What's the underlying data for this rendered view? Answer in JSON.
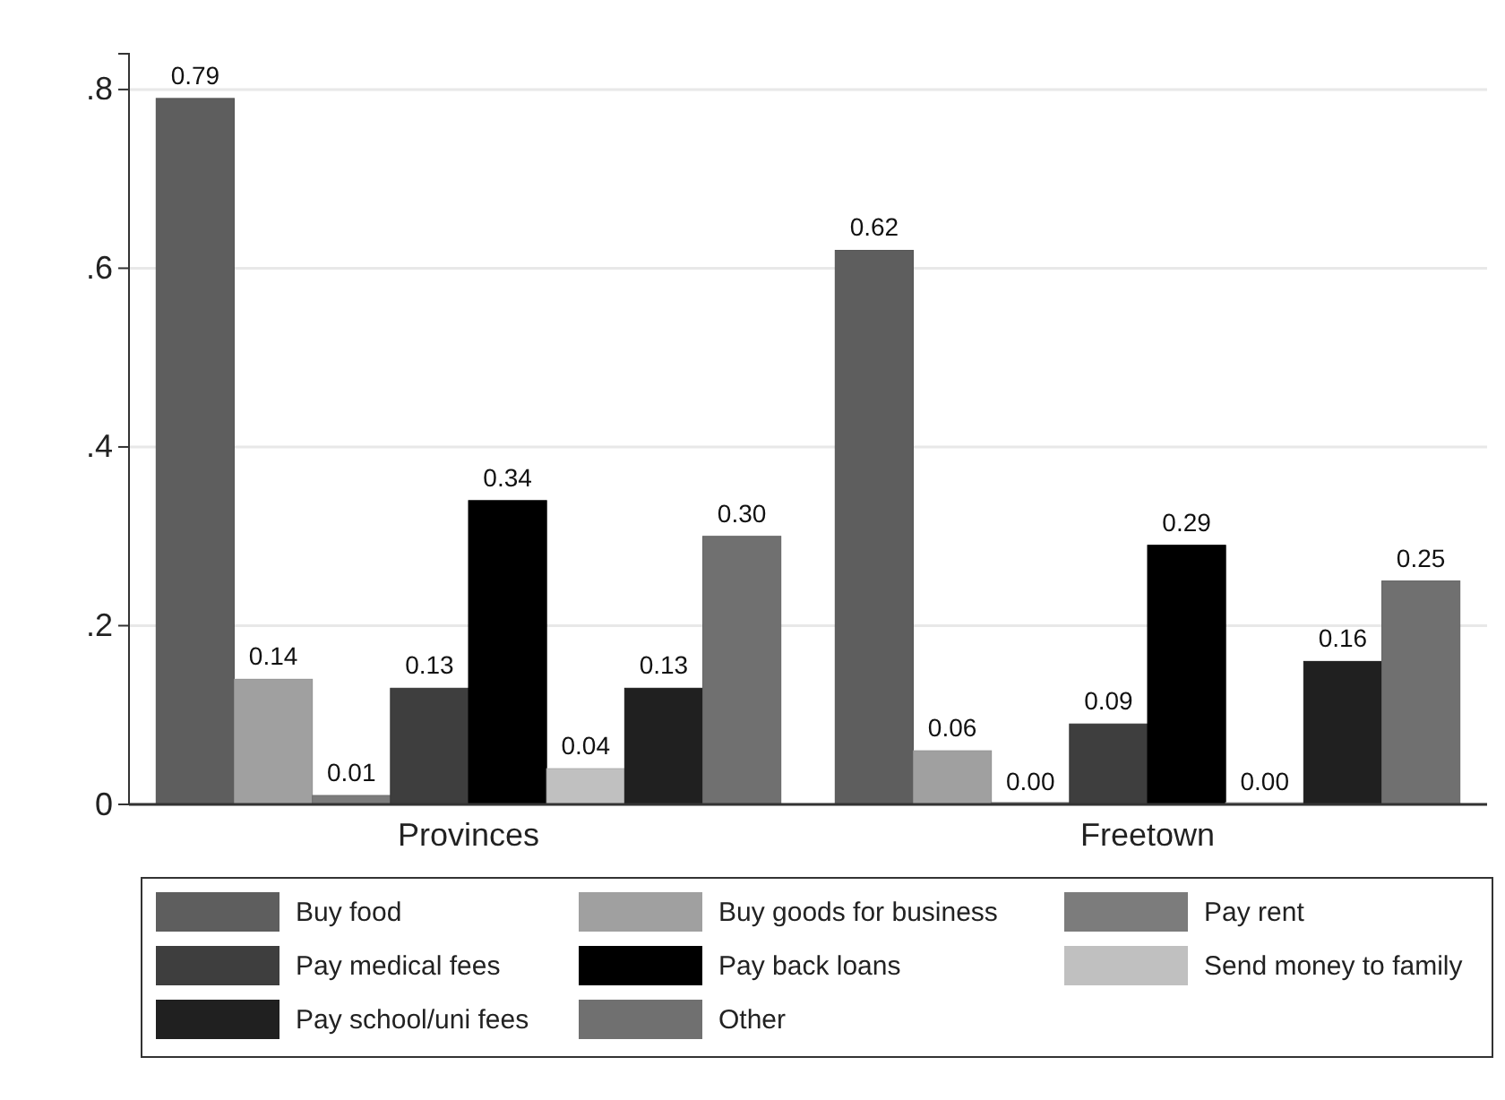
{
  "chart_data": {
    "type": "bar",
    "categories": [
      "Provinces",
      "Freetown"
    ],
    "series": [
      {
        "name": "Buy food",
        "color": "#5e5e5e",
        "values": [
          0.79,
          0.62
        ],
        "value_labels": [
          "0.79",
          "0.62"
        ]
      },
      {
        "name": "Buy goods for business",
        "color": "#a0a0a0",
        "values": [
          0.14,
          0.06
        ],
        "value_labels": [
          "0.14",
          "0.06"
        ]
      },
      {
        "name": "Pay rent",
        "color": "#7c7c7c",
        "values": [
          0.01,
          0.0
        ],
        "value_labels": [
          "0.01",
          "0.00"
        ]
      },
      {
        "name": "Pay medical fees",
        "color": "#3e3e3e",
        "values": [
          0.13,
          0.09
        ],
        "value_labels": [
          "0.13",
          "0.09"
        ]
      },
      {
        "name": "Pay back loans",
        "color": "#000000",
        "values": [
          0.34,
          0.29
        ],
        "value_labels": [
          "0.34",
          "0.29"
        ]
      },
      {
        "name": "Send money to family",
        "color": "#c0c0c0",
        "values": [
          0.04,
          0.0
        ],
        "value_labels": [
          "0.04",
          "0.00"
        ]
      },
      {
        "name": "Pay school/uni fees",
        "color": "#202020",
        "values": [
          0.13,
          0.16
        ],
        "value_labels": [
          "0.13",
          "0.16"
        ]
      },
      {
        "name": "Other",
        "color": "#707070",
        "values": [
          0.3,
          0.25
        ],
        "value_labels": [
          "0.30",
          "0.25"
        ]
      }
    ],
    "ylim": [
      0,
      0.84
    ],
    "yticks": [
      0,
      {
        "value": 0.2,
        "label": ".2"
      },
      {
        "value": 0.4,
        "label": ".4"
      },
      {
        "value": 0.6,
        "label": ".6"
      },
      {
        "value": 0.8,
        "label": ".8"
      }
    ],
    "grid": "y",
    "legend": "bottom"
  }
}
